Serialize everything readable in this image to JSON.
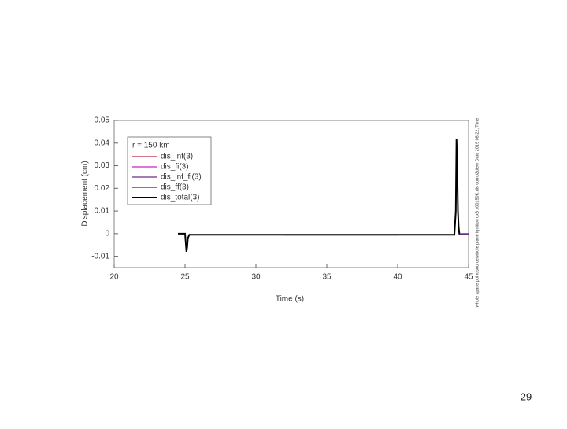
{
  "chart_data": {
    "type": "line",
    "xlabel": "Time (s)",
    "ylabel": "Displacement (cm)",
    "legend_title": "r = 150 km",
    "side_note": "whole space point source/whole plane ignition ox3 x00150K.dis comp2diew Date 2019 08 22, Time",
    "page_number": "29",
    "xlim": [
      20,
      45
    ],
    "xticks": [
      20,
      25,
      30,
      35,
      40,
      45
    ],
    "ylim": [
      -0.015,
      0.05
    ],
    "yticks": [
      -0.01,
      0,
      0.01,
      0.02,
      0.03,
      0.04,
      0.05
    ],
    "legend": "upper left",
    "series": [
      {
        "name": "dis_inf(3)",
        "color": "#c0203a",
        "x": [
          44.4,
          44.7,
          45
        ],
        "values": [
          0,
          0,
          0
        ]
      },
      {
        "name": "dis_fi(3)",
        "color": "#d020c0",
        "x": [
          40,
          42,
          44
        ],
        "values": [
          -0.0005,
          -0.0005,
          -0.0005
        ]
      },
      {
        "name": "dis_inf_fi(3)",
        "color": "#6a2a8a",
        "x": [
          44.4,
          45
        ],
        "values": [
          -0.0002,
          -0.0002
        ]
      },
      {
        "name": "dis_ff(3)",
        "color": "#1a2a80",
        "x": [
          32,
          36,
          40
        ],
        "values": [
          -0.0006,
          -0.0006,
          -0.0006
        ]
      },
      {
        "name": "dis_total(3)",
        "color": "#000000",
        "x": [
          24.5,
          25.0,
          25.1,
          25.15,
          25.2,
          25.3,
          30,
          35,
          40,
          44.0,
          44.1,
          44.15,
          44.2,
          44.25,
          44.3,
          44.35,
          44.4
        ],
        "values": [
          0,
          0,
          -0.008,
          -0.006,
          -0.002,
          -0.0005,
          -0.0005,
          -0.0005,
          -0.0005,
          -0.0005,
          0.01,
          0.042,
          0.03,
          0.01,
          0.003,
          0,
          0
        ]
      }
    ]
  }
}
